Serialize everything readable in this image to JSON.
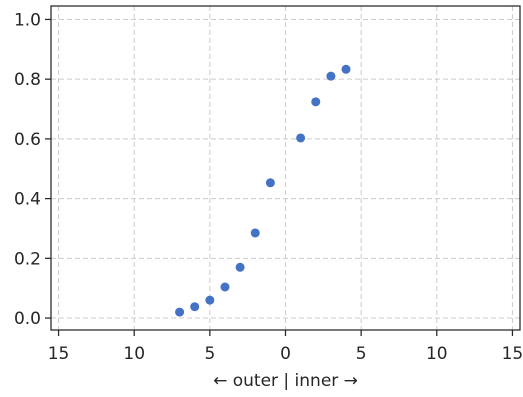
{
  "chart_data": {
    "type": "scatter",
    "title": "",
    "xlabel": "← outer | inner →",
    "ylabel": "",
    "xlim": [
      -15.5,
      15.5
    ],
    "ylim": [
      -0.04,
      1.045
    ],
    "xticks": [
      -15,
      -10,
      -5,
      0,
      5,
      10,
      15
    ],
    "xtick_labels": [
      "15",
      "10",
      "5",
      "0",
      "5",
      "10",
      "15"
    ],
    "yticks": [
      0.0,
      0.2,
      0.4,
      0.6,
      0.8,
      1.0
    ],
    "ytick_labels": [
      "0.0",
      "0.2",
      "0.4",
      "0.6",
      "0.8",
      "1.0"
    ],
    "grid": true,
    "series": [
      {
        "color": "#4472c4",
        "points": [
          {
            "x": -7,
            "y": 0.02
          },
          {
            "x": -6,
            "y": 0.038
          },
          {
            "x": -5,
            "y": 0.06
          },
          {
            "x": -4,
            "y": 0.104
          },
          {
            "x": -3,
            "y": 0.17
          },
          {
            "x": -2,
            "y": 0.285
          },
          {
            "x": -1,
            "y": 0.453
          },
          {
            "x": 1,
            "y": 0.603
          },
          {
            "x": 2,
            "y": 0.724
          },
          {
            "x": 3,
            "y": 0.81
          },
          {
            "x": 4,
            "y": 0.833
          }
        ]
      }
    ]
  }
}
